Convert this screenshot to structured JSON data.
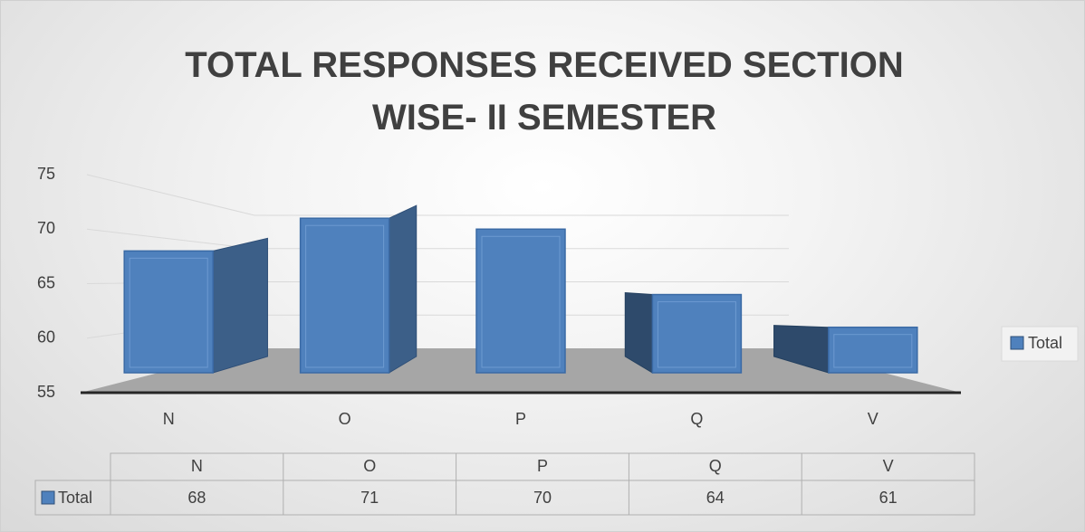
{
  "chart_data": {
    "type": "bar3d",
    "title": "TOTAL RESPONSES RECEIVED SECTION WISE- II SEMESTER",
    "categories": [
      "N",
      "O",
      "P",
      "Q",
      "V"
    ],
    "series": [
      {
        "name": "Total",
        "color": "#4f81bd",
        "values": [
          68,
          71,
          70,
          64,
          61
        ]
      }
    ],
    "ylim": [
      55,
      75
    ],
    "yticks": [
      55,
      60,
      65,
      70,
      75
    ],
    "grid": true,
    "legend": "right",
    "data_table": true
  }
}
